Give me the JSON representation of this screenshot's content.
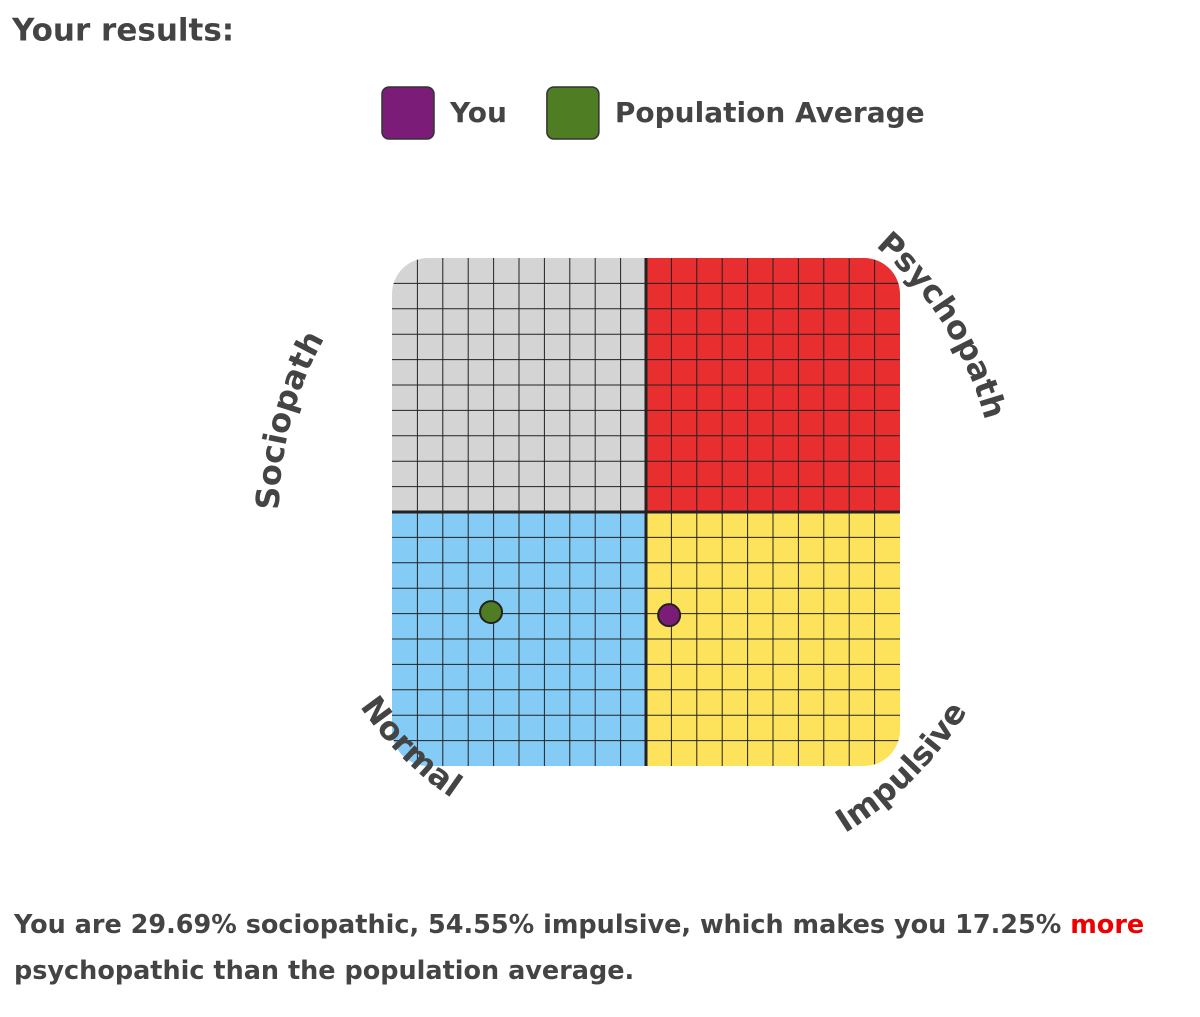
{
  "header": {
    "title": "Your results:"
  },
  "chart_data": {
    "type": "scatter",
    "quadrant_labels": {
      "top_left": "Sociopath",
      "top_right": "Psychopath",
      "bottom_left": "Normal",
      "bottom_right": "Impulsive"
    },
    "quadrant_colors": {
      "top_left": "#d4d4d4",
      "top_right": "#e82e2e",
      "bottom_left": "#84ccf6",
      "bottom_right": "#fde35c"
    },
    "xlim": [
      0,
      100
    ],
    "ylim": [
      0,
      100
    ],
    "grid": true,
    "legend": "top",
    "series": [
      {
        "name": "You",
        "color": "#7a1c78",
        "x": [
          54.55
        ],
        "values": [
          29.69
        ]
      },
      {
        "name": "Population Average",
        "color": "#4e7d24",
        "x": [
          19.5
        ],
        "values": [
          30.3
        ]
      }
    ]
  },
  "summary": {
    "text": "You are 29.69% sociopathic, 54.55% impulsive, which makes you 17.25%",
    "emphasis": "more",
    "text_after": "psychopathic than the population average."
  }
}
